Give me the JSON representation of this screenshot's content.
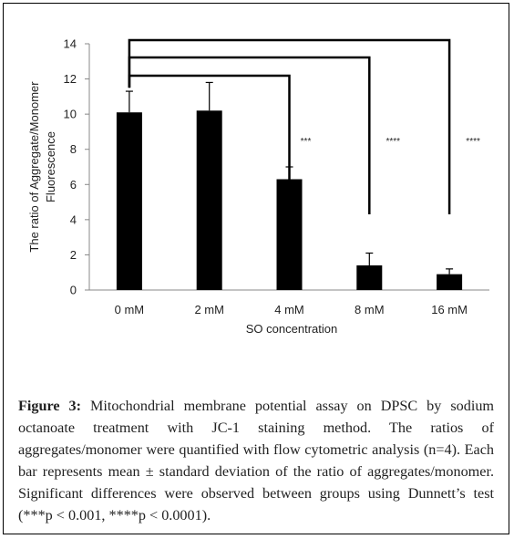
{
  "chart_data": {
    "type": "bar",
    "categories": [
      "0 mM",
      "2 mM",
      "4 mM",
      "8 mM",
      "16 mM"
    ],
    "values": [
      10.1,
      10.2,
      6.3,
      1.4,
      0.9
    ],
    "errors": [
      1.2,
      1.6,
      0.7,
      0.7,
      0.3
    ],
    "xlabel": "SO concentration",
    "ylabel_line1": "The ratio of  Aggregate/Monomer",
    "ylabel_line2": "Fluorescence",
    "ylim": [
      0,
      14
    ],
    "yticks": [
      0,
      2,
      4,
      6,
      8,
      10,
      12,
      14
    ],
    "bar_color": "#000000",
    "grid": false,
    "legend": "none",
    "significance": [
      {
        "from": "0 mM",
        "to": "4 mM",
        "label": "***"
      },
      {
        "from": "0 mM",
        "to": "8 mM",
        "label": "****"
      },
      {
        "from": "0 mM",
        "to": "16 mM",
        "label": "****"
      }
    ]
  },
  "caption": {
    "label": "Figure 3:",
    "text": " Mitochondrial membrane potential assay on DPSC by sodium octanoate treatment with JC-1 staining method. The ratios of aggregates/monomer were quantified with flow cytometric analysis (n=4). Each bar represents mean ± standard deviation of the ratio of aggregates/monomer. Significant differences were observed between groups using Dunnett’s test (***p < 0.001, ****p < 0.0001)."
  }
}
